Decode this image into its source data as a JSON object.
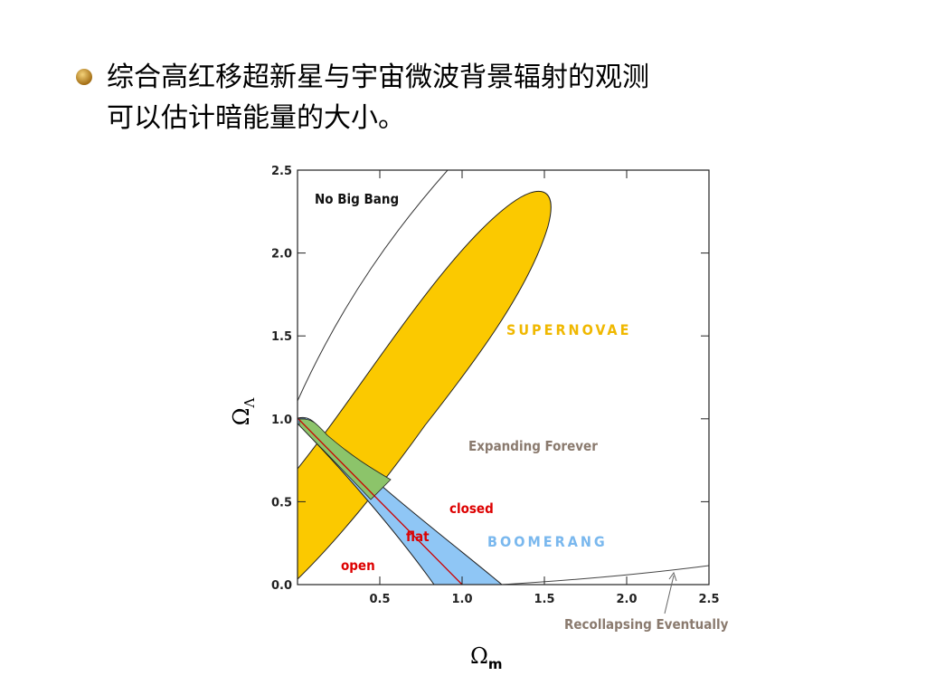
{
  "slide": {
    "bullet_lines": [
      "综合高红移超新星与宇宙微波背景辐射的观测",
      "可以估计暗能量的大小。"
    ]
  },
  "chart_data": {
    "type": "region",
    "x_label": {
      "symbol": "Ω",
      "subscript": "m"
    },
    "y_label": {
      "symbol": "Ω",
      "subscript": "Λ"
    },
    "xlim": [
      0,
      2.5
    ],
    "ylim": [
      0,
      2.5
    ],
    "xticks": [
      0.5,
      {
        "value": 1,
        "label": "1.0"
      },
      1.5,
      {
        "value": 2,
        "label": "2.0"
      },
      2.5
    ],
    "yticks": [
      {
        "value": 0,
        "label": "0.0"
      },
      0.5,
      {
        "value": 1,
        "label": "1.0"
      },
      1.5,
      {
        "value": 2,
        "label": "2.0"
      },
      2.5
    ],
    "annotations": [
      "No Big Bang",
      "SUPERNOVAE",
      "Expanding Forever",
      "closed",
      "flat",
      "BOOMERANG",
      "open",
      "Recollapsing Eventually"
    ]
  }
}
